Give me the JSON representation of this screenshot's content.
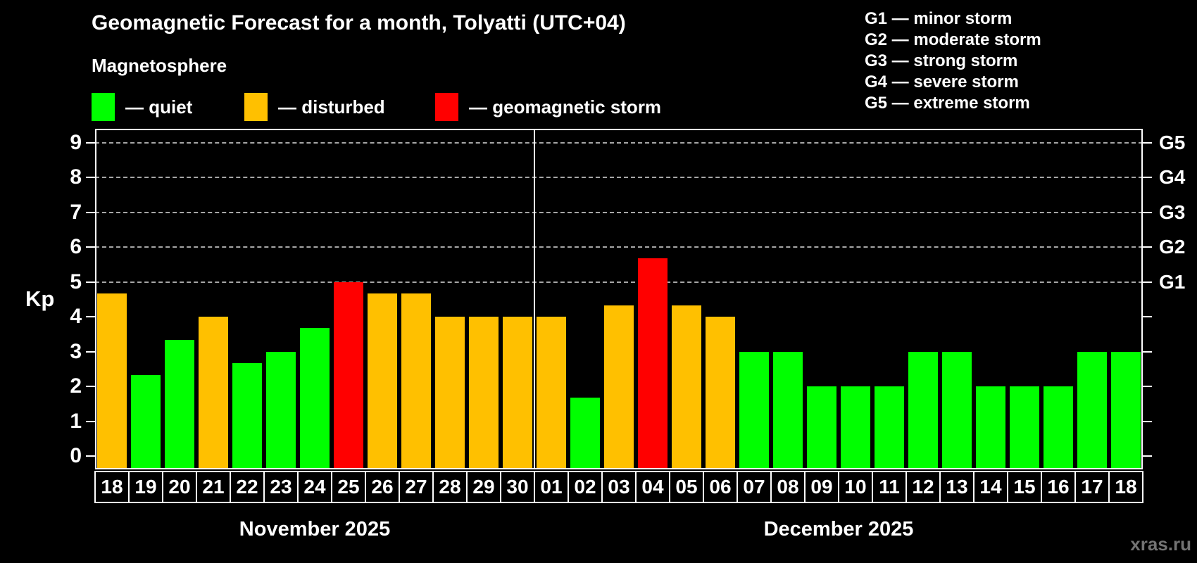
{
  "title": "Geomagnetic Forecast for a month, Tolyatti (UTC+04)",
  "subtitle": "Magnetosphere",
  "legend": {
    "items": [
      {
        "key": "quiet",
        "label": "— quiet",
        "color": "#00ff00"
      },
      {
        "key": "disturbed",
        "label": "— disturbed",
        "color": "#ffc000"
      },
      {
        "key": "storm",
        "label": "— geomagnetic storm",
        "color": "#ff0000"
      }
    ]
  },
  "g_legend": {
    "lines": [
      "G1 — minor storm",
      "G2 — moderate storm",
      "G3 — strong storm",
      "G4 — severe storm",
      "G5 — extreme storm"
    ]
  },
  "watermark": "xras.ru",
  "chart_data": {
    "type": "bar",
    "title": "Geomagnetic Forecast for a month, Tolyatti (UTC+04)",
    "ylabel": "Kp",
    "ylim": [
      -0.4,
      9.4
    ],
    "yticks": [
      0,
      1,
      2,
      3,
      4,
      5,
      6,
      7,
      8,
      9
    ],
    "gridline_levels": [
      5,
      6,
      7,
      8,
      9
    ],
    "right_axis": [
      {
        "level": 5,
        "label": "G1"
      },
      {
        "level": 6,
        "label": "G2"
      },
      {
        "level": 7,
        "label": "G3"
      },
      {
        "level": 8,
        "label": "G4"
      },
      {
        "level": 9,
        "label": "G5"
      }
    ],
    "status_colors": {
      "quiet": "#00ff00",
      "disturbed": "#ffc000",
      "storm": "#ff0000"
    },
    "months": [
      {
        "label": "November 2025",
        "days": [
          "18",
          "19",
          "20",
          "21",
          "22",
          "23",
          "24",
          "25",
          "26",
          "27",
          "28",
          "29",
          "30"
        ],
        "values": [
          4.67,
          2.33,
          3.33,
          4.0,
          2.67,
          3.0,
          3.67,
          5.0,
          4.67,
          4.67,
          4.0,
          4.0,
          4.0
        ],
        "status": [
          "disturbed",
          "quiet",
          "quiet",
          "disturbed",
          "quiet",
          "quiet",
          "quiet",
          "storm",
          "disturbed",
          "disturbed",
          "disturbed",
          "disturbed",
          "disturbed"
        ]
      },
      {
        "label": "December 2025",
        "days": [
          "01",
          "02",
          "03",
          "04",
          "05",
          "06",
          "07",
          "08",
          "09",
          "10",
          "11",
          "12",
          "13",
          "14",
          "15",
          "16",
          "17",
          "18"
        ],
        "values": [
          4.0,
          1.67,
          4.33,
          5.67,
          4.33,
          4.0,
          3.0,
          3.0,
          2.0,
          2.0,
          2.0,
          3.0,
          3.0,
          2.0,
          2.0,
          2.0,
          3.0,
          3.0
        ],
        "status": [
          "disturbed",
          "quiet",
          "disturbed",
          "storm",
          "disturbed",
          "disturbed",
          "quiet",
          "quiet",
          "quiet",
          "quiet",
          "quiet",
          "quiet",
          "quiet",
          "quiet",
          "quiet",
          "quiet",
          "quiet",
          "quiet"
        ]
      }
    ]
  }
}
